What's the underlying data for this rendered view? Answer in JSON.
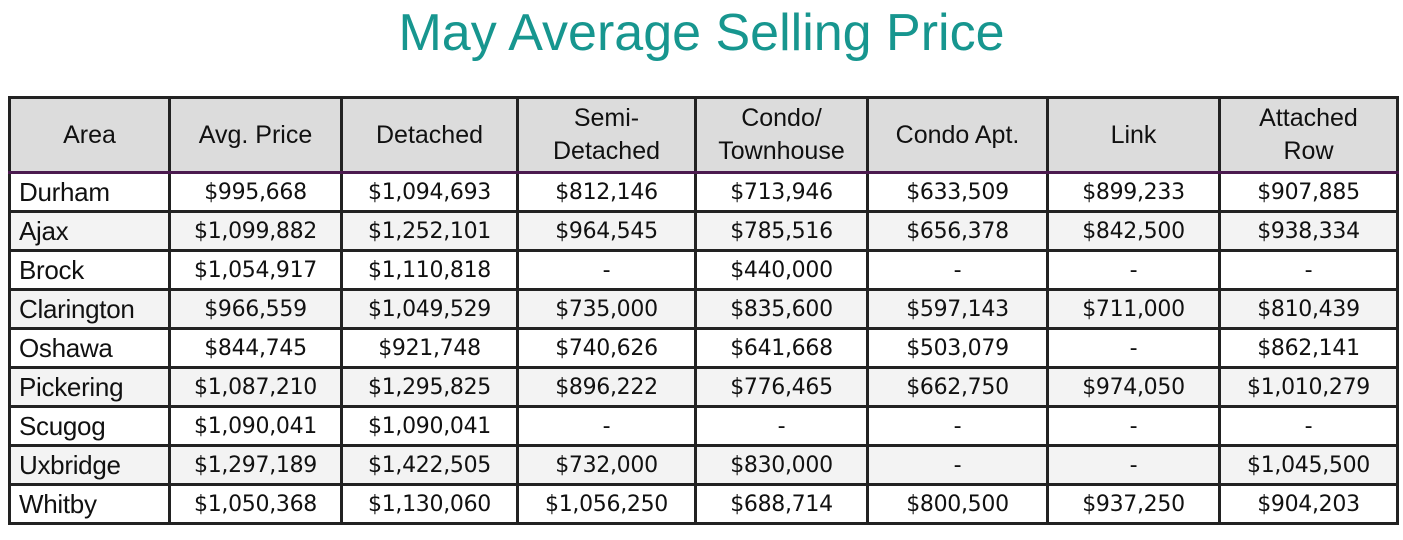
{
  "title": "May Average Selling Price",
  "headers": [
    "Area",
    "Avg. Price",
    "Detached",
    "Semi-\nDetached",
    "Condo/\nTownhouse",
    "Condo Apt.",
    "Link",
    "Attached\nRow"
  ],
  "rows": [
    [
      "Durham",
      "$995,668",
      "$1,094,693",
      "$812,146",
      "$713,946",
      "$633,509",
      "$899,233",
      "$907,885"
    ],
    [
      "Ajax",
      "$1,099,882",
      "$1,252,101",
      "$964,545",
      "$785,516",
      "$656,378",
      "$842,500",
      "$938,334"
    ],
    [
      "Brock",
      "$1,054,917",
      "$1,110,818",
      "-",
      "$440,000",
      "-",
      "-",
      "-"
    ],
    [
      "Clarington",
      "$966,559",
      "$1,049,529",
      "$735,000",
      "$835,600",
      "$597,143",
      "$711,000",
      "$810,439"
    ],
    [
      "Oshawa",
      "$844,745",
      "$921,748",
      "$740,626",
      "$641,668",
      "$503,079",
      "-",
      "$862,141"
    ],
    [
      "Pickering",
      "$1,087,210",
      "$1,295,825",
      "$896,222",
      "$776,465",
      "$662,750",
      "$974,050",
      "$1,010,279"
    ],
    [
      "Scugog",
      "$1,090,041",
      "$1,090,041",
      "-",
      "-",
      "-",
      "-",
      "-"
    ],
    [
      "Uxbridge",
      "$1,297,189",
      "$1,422,505",
      "$732,000",
      "$830,000",
      "-",
      "-",
      "$1,045,500"
    ],
    [
      "Whitby",
      "$1,050,368",
      "$1,130,060",
      "$1,056,250",
      "$688,714",
      "$800,500",
      "$937,250",
      "$904,203"
    ]
  ]
}
